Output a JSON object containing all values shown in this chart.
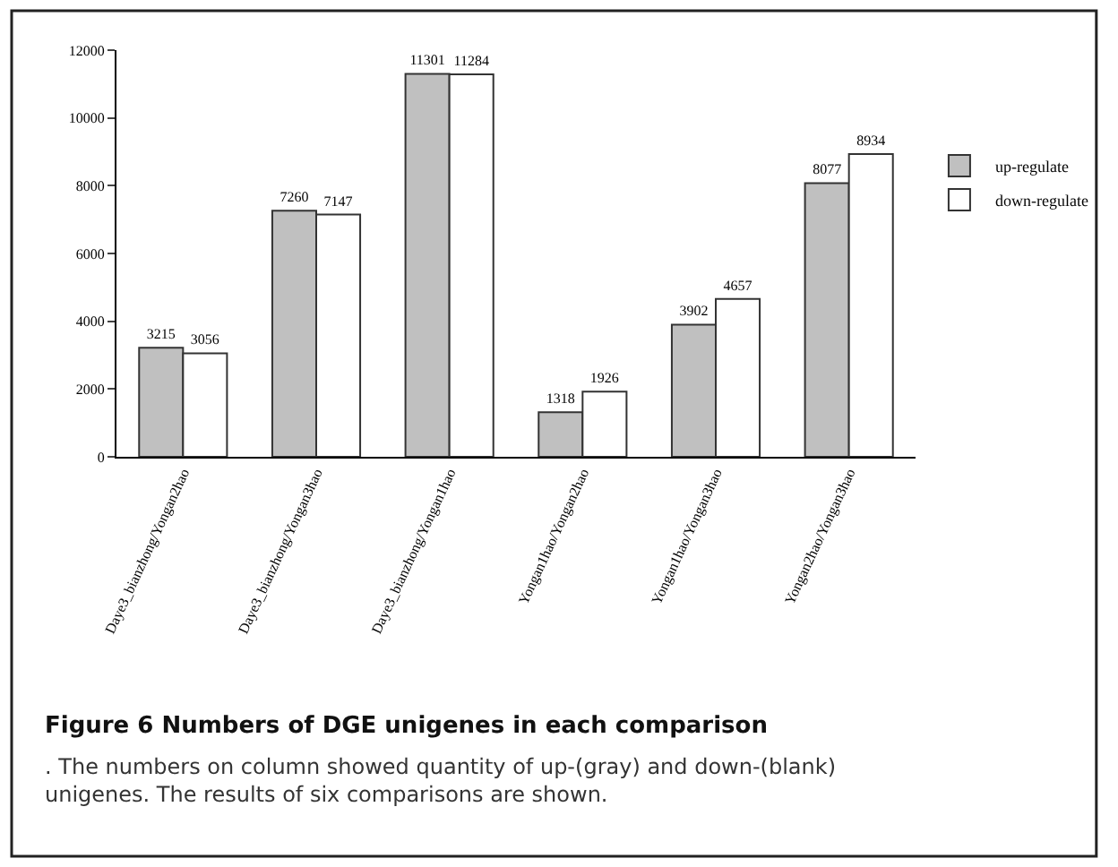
{
  "chart_data": {
    "type": "bar",
    "title": "Figure 6 Numbers of DGE unigenes in each comparison",
    "annotations": [
      ". The numbers on column showed quantity of up-(gray) and down-(blank) unigenes. The results of six comparisons are shown."
    ],
    "categories": [
      "Daye3_bianzhong/Yongan2hao",
      "Daye3_bianzhong/Yongan3hao",
      "Daye3_bianzhong/Yongan1hao",
      "Yongan1hao/Yongan2hao",
      "Yongan1hao/Yongan3hao",
      "Yongan2hao/Yongan3hao"
    ],
    "series": [
      {
        "name": "up-regulate",
        "color": "#c0c0c0",
        "values": [
          3215,
          7260,
          11301,
          1318,
          3902,
          8077
        ]
      },
      {
        "name": "down-regulate",
        "color": "#ffffff",
        "values": [
          3056,
          7147,
          11284,
          1926,
          4657,
          8934
        ]
      }
    ],
    "ylim": [
      0,
      12000
    ],
    "yticks": [
      0,
      2000,
      4000,
      6000,
      8000,
      10000,
      12000
    ],
    "data_labels": true,
    "legend": "right"
  }
}
